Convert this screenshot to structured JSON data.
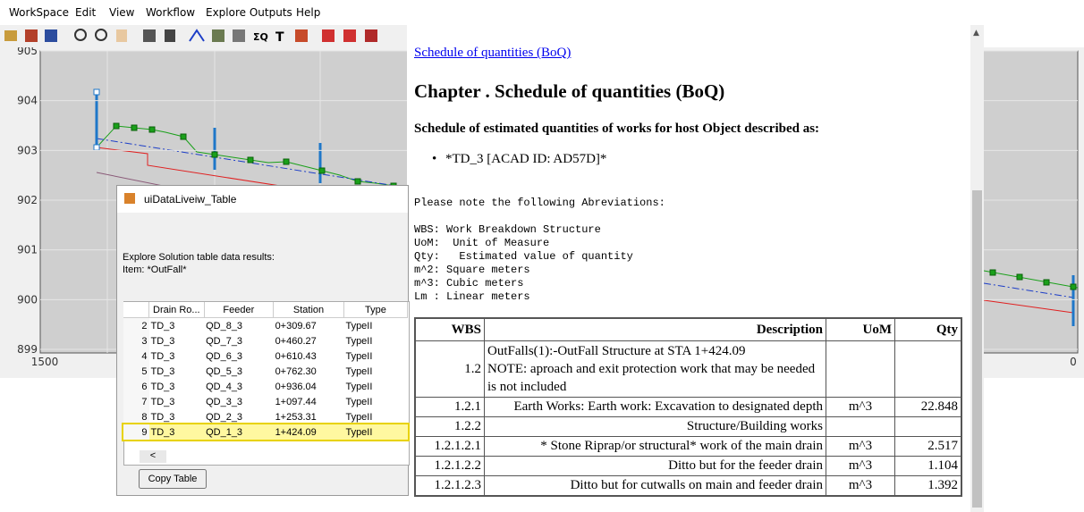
{
  "menu": [
    "WorkSpace",
    "Edit",
    "View",
    "Workflow",
    "Explore Outputs",
    "Help"
  ],
  "plot": {
    "yticks": [
      905,
      904,
      903,
      902,
      901,
      900,
      899
    ],
    "xticks": [
      1500,
      0
    ]
  },
  "dialog": {
    "title": "uiDataLiveiw_Table",
    "description": "Explore Solution table data results:",
    "item": "Item: *OutFall*",
    "columns": [
      "Drain Ro...",
      "Feeder",
      "Station",
      "Type"
    ],
    "rows": [
      [
        "2",
        "TD_3",
        "QD_8_3",
        "0+309.67",
        "TypeII"
      ],
      [
        "3",
        "TD_3",
        "QD_7_3",
        "0+460.27",
        "TypeII"
      ],
      [
        "4",
        "TD_3",
        "QD_6_3",
        "0+610.43",
        "TypeII"
      ],
      [
        "5",
        "TD_3",
        "QD_5_3",
        "0+762.30",
        "TypeII"
      ],
      [
        "6",
        "TD_3",
        "QD_4_3",
        "0+936.04",
        "TypeII"
      ],
      [
        "7",
        "TD_3",
        "QD_3_3",
        "1+097.44",
        "TypeII"
      ],
      [
        "8",
        "TD_3",
        "QD_2_3",
        "1+253.31",
        "TypeII"
      ],
      [
        "9",
        "TD_3",
        "QD_1_3",
        "1+424.09",
        "TypeII"
      ]
    ],
    "scroll": "<",
    "button": "Copy Table"
  },
  "document": {
    "link": "Schedule of quantities (BoQ)",
    "heading": "Chapter . Schedule of quantities (BoQ)",
    "subheading": "Schedule of estimated quantities of works for host Object described as:",
    "bullet": "*TD_3 [ACAD ID: AD57D]*",
    "note": "Please note the following Abreviations:",
    "abbreviations": [
      "WBS: Work Breakdown Structure",
      "UoM:  Unit of Measure",
      "Qty:   Estimated value of quantity",
      "m^2: Square meters",
      "m^3: Cubic meters",
      "Lm : Linear meters"
    ],
    "table": {
      "columns": [
        "WBS",
        "Description",
        "UoM",
        "Qty"
      ],
      "rows": [
        {
          "wbs": "1.2",
          "description": "OutFalls(1):-OutFall Structure at STA 1+424.09",
          "remark": "NOTE: aproach and exit protection work that may be needed is not included",
          "uom": null,
          "qty": null
        },
        {
          "wbs": "1.2.1",
          "description": "Earth Works: Earth work: Excavation to designated depth",
          "uom": "m^3",
          "qty": 22.848
        },
        {
          "wbs": "1.2.2",
          "description": "Structure/Building works",
          "uom": null,
          "qty": null
        },
        {
          "wbs": "1.2.1.2.1",
          "description": "* Stone Riprap/or structural* work of the main drain",
          "uom": "m^3",
          "qty": 2.517
        },
        {
          "wbs": "1.2.1.2.2",
          "description": "Ditto but for the feeder drain",
          "uom": "m^3",
          "qty": 1.104
        },
        {
          "wbs": "1.2.1.2.3",
          "description": "Ditto but for cutwalls on main and feeder drain",
          "uom": "m^3",
          "qty": 1.392
        }
      ]
    }
  }
}
